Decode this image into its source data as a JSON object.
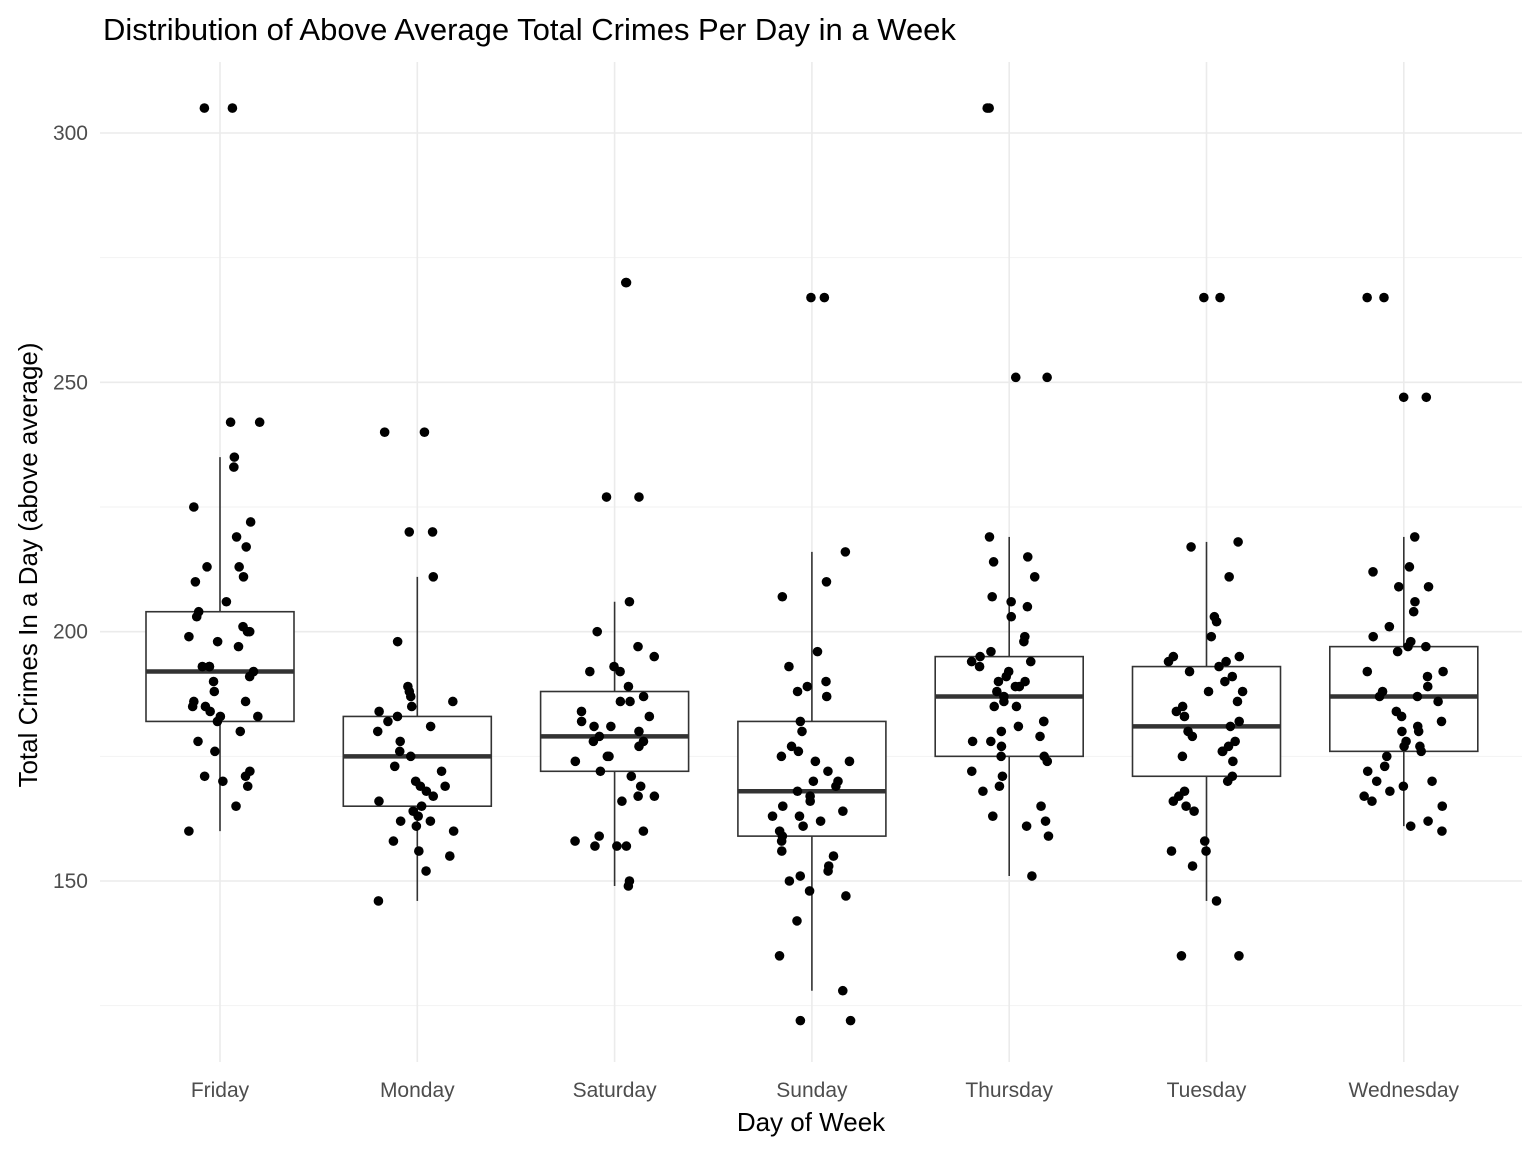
{
  "chart_data": {
    "type": "boxplot",
    "title": "Distribution of Above Average Total Crimes Per Day in a Week",
    "xlabel": "Day of Week",
    "ylabel": "Total Crimes In a Day (above average)",
    "categories": [
      "Friday",
      "Monday",
      "Saturday",
      "Sunday",
      "Thursday",
      "Tuesday",
      "Wednesday"
    ],
    "ylim": [
      116,
      311
    ],
    "y_ticks": [
      150,
      200,
      250,
      300
    ],
    "y_minor_ticks": [
      125,
      175,
      225,
      275
    ],
    "grid": true,
    "legend": "none",
    "boxes": [
      {
        "category": "Friday",
        "whisker_low": 160,
        "q1": 182,
        "median": 192,
        "q3": 204,
        "whisker_high": 235
      },
      {
        "category": "Monday",
        "whisker_low": 146,
        "q1": 165,
        "median": 175,
        "q3": 183,
        "whisker_high": 211
      },
      {
        "category": "Saturday",
        "whisker_low": 149,
        "q1": 172,
        "median": 179,
        "q3": 188,
        "whisker_high": 206
      },
      {
        "category": "Sunday",
        "whisker_low": 128,
        "q1": 159,
        "median": 168,
        "q3": 182,
        "whisker_high": 216
      },
      {
        "category": "Thursday",
        "whisker_low": 151,
        "q1": 175,
        "median": 187,
        "q3": 195,
        "whisker_high": 219
      },
      {
        "category": "Tuesday",
        "whisker_low": 146,
        "q1": 171,
        "median": 181,
        "q3": 193,
        "whisker_high": 218
      },
      {
        "category": "Wednesday",
        "whisker_low": 161,
        "q1": 176,
        "median": 187,
        "q3": 197,
        "whisker_high": 219
      }
    ],
    "points": [
      {
        "category": "Friday",
        "values": [
          305,
          305,
          242,
          242,
          235,
          233,
          225,
          222,
          219,
          217,
          213,
          213,
          211,
          210,
          206,
          204,
          203,
          201,
          200,
          200,
          199,
          198,
          197,
          193,
          193,
          193,
          192,
          191,
          190,
          188,
          186,
          186,
          185,
          185,
          184,
          183,
          183,
          182,
          180,
          178,
          176,
          172,
          171,
          171,
          170,
          169,
          165,
          160
        ]
      },
      {
        "category": "Monday",
        "values": [
          240,
          240,
          220,
          220,
          211,
          198,
          189,
          188,
          187,
          186,
          185,
          184,
          183,
          182,
          181,
          180,
          178,
          176,
          175,
          173,
          172,
          170,
          169,
          169,
          168,
          167,
          166,
          165,
          164,
          163,
          162,
          162,
          161,
          160,
          158,
          156,
          155,
          152,
          146
        ]
      },
      {
        "category": "Saturday",
        "values": [
          270,
          270,
          227,
          227,
          206,
          200,
          197,
          195,
          193,
          192,
          192,
          189,
          187,
          186,
          186,
          184,
          183,
          182,
          181,
          181,
          180,
          179,
          178,
          178,
          177,
          175,
          175,
          174,
          172,
          171,
          169,
          167,
          167,
          166,
          160,
          159,
          158,
          157,
          157,
          157,
          150,
          149
        ]
      },
      {
        "category": "Sunday",
        "values": [
          267,
          267,
          216,
          210,
          207,
          196,
          193,
          190,
          189,
          188,
          187,
          182,
          180,
          177,
          176,
          175,
          174,
          174,
          172,
          170,
          170,
          169,
          168,
          167,
          166,
          165,
          164,
          163,
          163,
          162,
          161,
          160,
          159,
          158,
          156,
          155,
          153,
          152,
          151,
          150,
          148,
          147,
          142,
          135,
          128,
          122,
          122
        ]
      },
      {
        "category": "Thursday",
        "values": [
          305,
          305,
          251,
          251,
          219,
          215,
          214,
          211,
          207,
          206,
          205,
          203,
          199,
          198,
          196,
          195,
          194,
          194,
          193,
          192,
          191,
          190,
          190,
          189,
          189,
          188,
          187,
          186,
          185,
          185,
          182,
          182,
          181,
          180,
          179,
          178,
          178,
          177,
          175,
          175,
          174,
          172,
          171,
          169,
          168,
          165,
          163,
          162,
          161,
          159,
          151
        ]
      },
      {
        "category": "Tuesday",
        "values": [
          267,
          267,
          218,
          217,
          211,
          203,
          202,
          199,
          195,
          195,
          194,
          194,
          193,
          192,
          191,
          190,
          188,
          188,
          186,
          185,
          184,
          183,
          182,
          181,
          180,
          179,
          178,
          177,
          176,
          176,
          175,
          174,
          171,
          170,
          168,
          167,
          166,
          165,
          164,
          158,
          156,
          156,
          153,
          146,
          135,
          135
        ]
      },
      {
        "category": "Wednesday",
        "values": [
          267,
          267,
          247,
          247,
          219,
          213,
          212,
          209,
          209,
          206,
          204,
          201,
          199,
          198,
          197,
          197,
          196,
          192,
          192,
          191,
          189,
          188,
          187,
          187,
          186,
          184,
          183,
          182,
          181,
          180,
          180,
          178,
          177,
          177,
          176,
          175,
          173,
          172,
          170,
          170,
          169,
          168,
          167,
          166,
          165,
          162,
          161,
          160
        ]
      }
    ]
  }
}
